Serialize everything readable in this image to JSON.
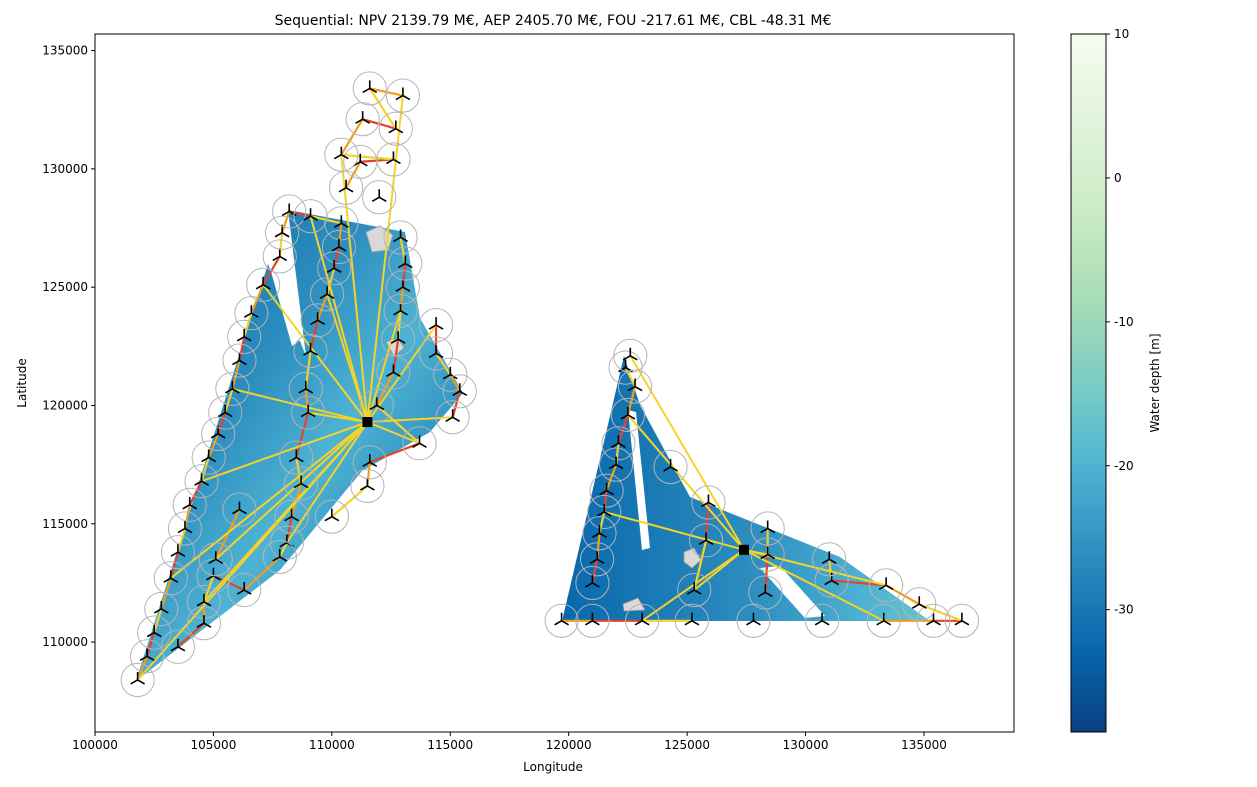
{
  "chart_data": {
    "type": "scatter",
    "title": "Sequential: NPV 2139.79 M€, AEP 2405.70 M€, FOU -217.61 M€, CBL -48.31 M€",
    "xlabel": "Longitude",
    "ylabel": "Latitude",
    "xlim": [
      100000,
      138800
    ],
    "ylim": [
      106200,
      135700
    ],
    "x_ticks": [
      100000,
      105000,
      110000,
      115000,
      120000,
      125000,
      130000,
      135000
    ],
    "y_ticks": [
      110000,
      115000,
      120000,
      125000,
      130000,
      135000
    ],
    "grid": false,
    "colorbar": {
      "label": "Water depth [m]",
      "range": [
        -38.5,
        10
      ],
      "ticks": [
        10,
        0,
        -10,
        -20,
        -30
      ],
      "colormap": "GnBu_r",
      "stops": [
        "#084081",
        "#0868ac",
        "#2b8cbe",
        "#4eb3d3",
        "#7bccc4",
        "#a8ddb5",
        "#ccebc5",
        "#e0f3db",
        "#f7fcf0"
      ]
    },
    "colors": {
      "cable_small": "#f5d327",
      "cable_medium": "#f39c1a",
      "cable_large": "#e0452c",
      "turbine_marker": "#000000",
      "turbine_circle": "#b4b4b4",
      "substation": "#000000",
      "exclusion_zone": "#d9d9d9"
    },
    "substations": [
      {
        "x": 111500,
        "y": 119300
      },
      {
        "x": 127400,
        "y": 113900
      }
    ],
    "turbines": [
      [
        101800,
        108400
      ],
      [
        102200,
        109400
      ],
      [
        102500,
        110400
      ],
      [
        102800,
        111400
      ],
      [
        103200,
        112700
      ],
      [
        103500,
        113800
      ],
      [
        103800,
        114800
      ],
      [
        104000,
        115800
      ],
      [
        104500,
        116800
      ],
      [
        104800,
        117800
      ],
      [
        105200,
        118800
      ],
      [
        105500,
        119700
      ],
      [
        105800,
        120700
      ],
      [
        106100,
        121900
      ],
      [
        106300,
        122900
      ],
      [
        106600,
        123900
      ],
      [
        107100,
        125100
      ],
      [
        107800,
        126300
      ],
      [
        107900,
        127300
      ],
      [
        108200,
        128200
      ],
      [
        109100,
        128000
      ],
      [
        110400,
        127700
      ],
      [
        110300,
        126700
      ],
      [
        110100,
        125800
      ],
      [
        109800,
        124700
      ],
      [
        109400,
        123600
      ],
      [
        109100,
        122300
      ],
      [
        108900,
        120700
      ],
      [
        109000,
        119700
      ],
      [
        108500,
        117800
      ],
      [
        108700,
        116700
      ],
      [
        108300,
        115300
      ],
      [
        108100,
        114200
      ],
      [
        107800,
        113600
      ],
      [
        106300,
        112200
      ],
      [
        105000,
        112800
      ],
      [
        104600,
        111700
      ],
      [
        104600,
        110800
      ],
      [
        103500,
        109800
      ],
      [
        106100,
        115600
      ],
      [
        105100,
        113500
      ],
      [
        110000,
        115300
      ],
      [
        111500,
        116600
      ],
      [
        111600,
        117600
      ],
      [
        113700,
        118400
      ],
      [
        111900,
        120000
      ],
      [
        112600,
        121400
      ],
      [
        112800,
        122800
      ],
      [
        112900,
        124000
      ],
      [
        113000,
        125000
      ],
      [
        113100,
        126000
      ],
      [
        112900,
        127100
      ],
      [
        114400,
        123400
      ],
      [
        114400,
        122200
      ],
      [
        115000,
        121300
      ],
      [
        115400,
        120600
      ],
      [
        115100,
        119500
      ],
      [
        110600,
        129200
      ],
      [
        111200,
        130300
      ],
      [
        112600,
        130400
      ],
      [
        110400,
        130600
      ],
      [
        111300,
        132100
      ],
      [
        112700,
        131700
      ],
      [
        111600,
        133400
      ],
      [
        113000,
        133100
      ],
      [
        112000,
        128800
      ],
      [
        119700,
        110900
      ],
      [
        121000,
        110900
      ],
      [
        123100,
        110900
      ],
      [
        125200,
        110900
      ],
      [
        127800,
        110900
      ],
      [
        130700,
        110900
      ],
      [
        133300,
        110900
      ],
      [
        135400,
        110900
      ],
      [
        136600,
        110900
      ],
      [
        134800,
        111600
      ],
      [
        133400,
        112400
      ],
      [
        131100,
        112600
      ],
      [
        131000,
        113500
      ],
      [
        128300,
        112100
      ],
      [
        128400,
        113700
      ],
      [
        128400,
        114800
      ],
      [
        125900,
        115900
      ],
      [
        125800,
        114300
      ],
      [
        125300,
        112200
      ],
      [
        124300,
        117400
      ],
      [
        122400,
        121600
      ],
      [
        122800,
        120800
      ],
      [
        122500,
        119600
      ],
      [
        122100,
        118400
      ],
      [
        122000,
        117500
      ],
      [
        121600,
        116400
      ],
      [
        121500,
        115500
      ],
      [
        121300,
        114600
      ],
      [
        121200,
        113500
      ],
      [
        121000,
        112500
      ],
      [
        122600,
        122100
      ]
    ],
    "series": [
      {
        "name": "",
        "values": []
      }
    ]
  }
}
